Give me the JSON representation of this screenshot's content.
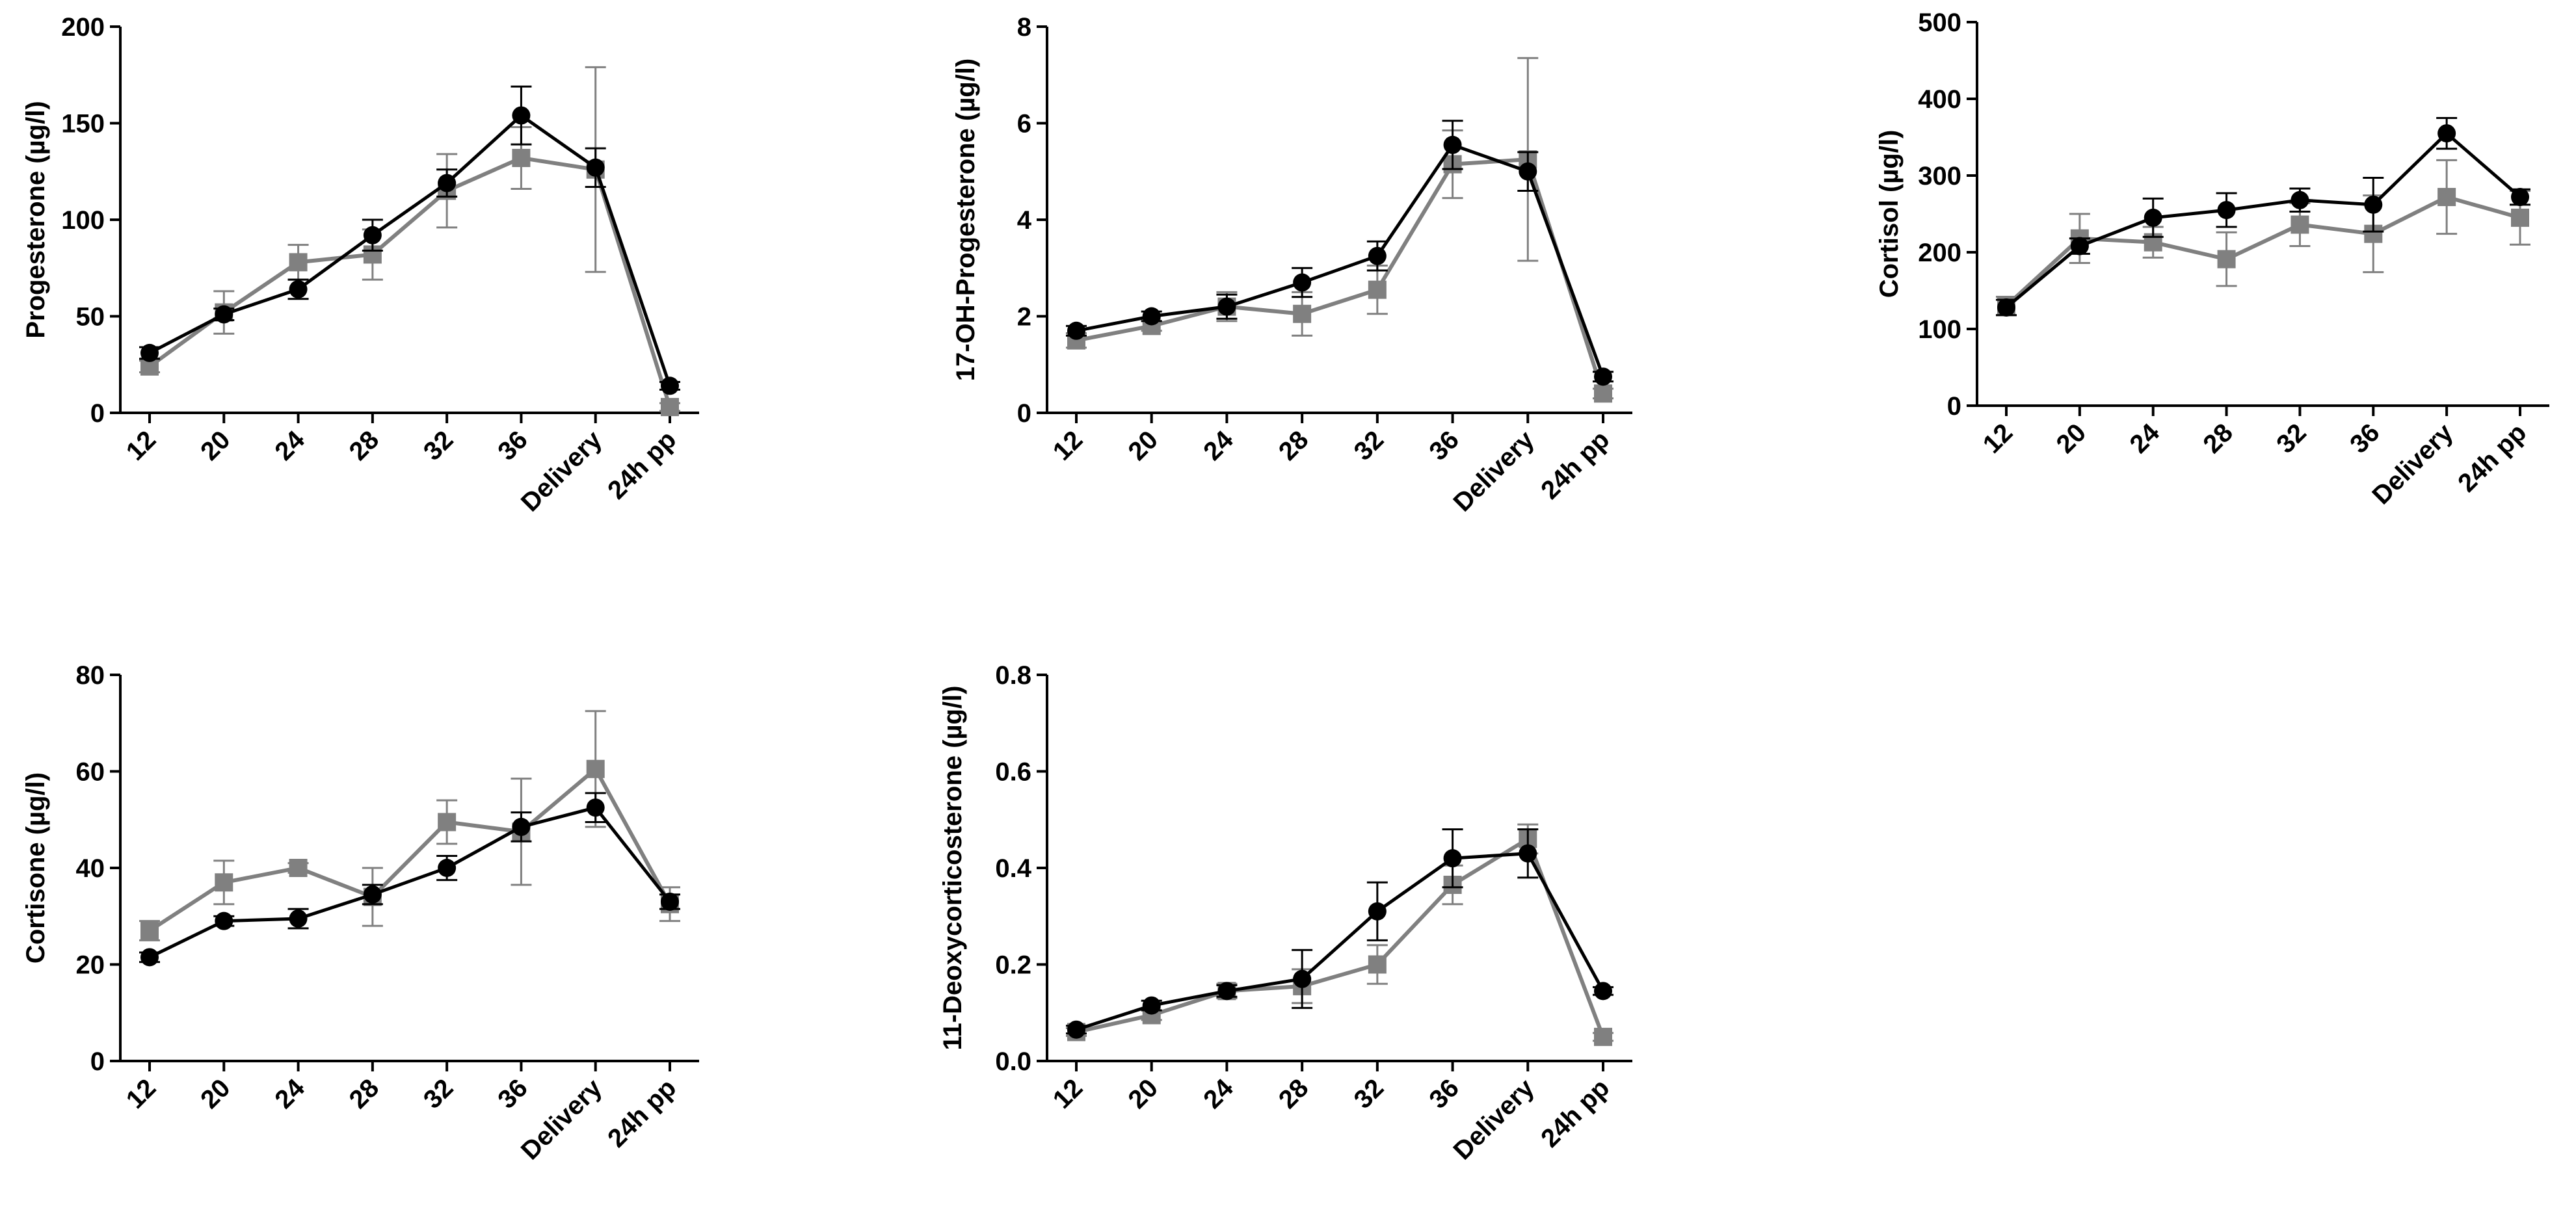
{
  "chart_data": [
    {
      "type": "line",
      "ylabel": "Progesterone (µg/l)",
      "ylim": [
        0,
        200
      ],
      "yticks": [
        0,
        50,
        100,
        150,
        200
      ],
      "categories": [
        "12",
        "20",
        "24",
        "28",
        "32",
        "36",
        "Delivery",
        "24h pp"
      ],
      "series": [
        {
          "name": "series-black",
          "color": "#000000",
          "marker": "circle",
          "values": [
            31,
            51,
            64,
            92,
            119,
            154,
            127,
            14
          ],
          "errors": [
            3,
            3,
            5,
            8,
            7,
            15,
            10,
            2
          ]
        },
        {
          "name": "series-gray",
          "color": "#808080",
          "marker": "square",
          "values": [
            24,
            52,
            78,
            82,
            115,
            132,
            126,
            3
          ],
          "errors": [
            3,
            11,
            9,
            13,
            19,
            16,
            53,
            2
          ]
        }
      ]
    },
    {
      "type": "line",
      "ylabel": "17-OH-Progesterone (µg/l)",
      "ylim": [
        0,
        8
      ],
      "yticks": [
        0,
        2,
        4,
        6,
        8
      ],
      "categories": [
        "12",
        "20",
        "24",
        "28",
        "32",
        "36",
        "Delivery",
        "24h pp"
      ],
      "series": [
        {
          "name": "series-black",
          "color": "#000000",
          "marker": "circle",
          "values": [
            1.7,
            2.0,
            2.2,
            2.7,
            3.25,
            5.55,
            5.0,
            0.75
          ],
          "errors": [
            0.1,
            0.1,
            0.25,
            0.3,
            0.3,
            0.5,
            0.4,
            0.1
          ]
        },
        {
          "name": "series-gray",
          "color": "#808080",
          "marker": "square",
          "values": [
            1.5,
            1.8,
            2.2,
            2.05,
            2.55,
            5.15,
            5.25,
            0.4
          ],
          "errors": [
            0.15,
            0.1,
            0.3,
            0.45,
            0.5,
            0.7,
            2.1,
            0.1
          ]
        }
      ]
    },
    {
      "type": "line",
      "ylabel": "Cortisol (µg/l)",
      "ylim": [
        0,
        500
      ],
      "yticks": [
        0,
        100,
        200,
        300,
        400,
        500
      ],
      "categories": [
        "12",
        "20",
        "24",
        "28",
        "32",
        "36",
        "Delivery",
        "24h pp"
      ],
      "series": [
        {
          "name": "series-black",
          "color": "#000000",
          "marker": "circle",
          "values": [
            128,
            208,
            245,
            255,
            268,
            262,
            355,
            272
          ],
          "errors": [
            10,
            10,
            25,
            22,
            15,
            35,
            20,
            10
          ]
        },
        {
          "name": "series-gray",
          "color": "#808080",
          "marker": "square",
          "values": [
            130,
            218,
            213,
            191,
            236,
            224,
            272,
            245
          ],
          "errors": [
            12,
            32,
            20,
            35,
            28,
            50,
            48,
            35
          ]
        }
      ]
    },
    {
      "type": "line",
      "ylabel": "Cortisone (µg/l)",
      "ylim": [
        0,
        80
      ],
      "yticks": [
        0,
        20,
        40,
        60,
        80
      ],
      "categories": [
        "12",
        "20",
        "24",
        "28",
        "32",
        "36",
        "Delivery",
        "24h pp"
      ],
      "series": [
        {
          "name": "series-black",
          "color": "#000000",
          "marker": "circle",
          "values": [
            21.5,
            29,
            29.5,
            34.5,
            40,
            48.5,
            52.5,
            33
          ],
          "errors": [
            1,
            1,
            2,
            2,
            2.5,
            3,
            3,
            1.5
          ]
        },
        {
          "name": "series-gray",
          "color": "#808080",
          "marker": "square",
          "values": [
            27,
            37,
            40,
            34,
            49.5,
            47.5,
            60.5,
            32.5
          ],
          "errors": [
            2,
            4.5,
            1,
            6,
            4.5,
            11,
            12,
            3.5
          ]
        }
      ]
    },
    {
      "type": "line",
      "ylabel": "11-Deoxycorticosterone (µg/l)",
      "ylim": [
        0,
        0.8
      ],
      "yticks": [
        0.0,
        0.2,
        0.4,
        0.6,
        0.8
      ],
      "yticklabels": [
        "0.0",
        "0.2",
        "0.4",
        "0.6",
        "0.8"
      ],
      "categories": [
        "12",
        "20",
        "24",
        "28",
        "32",
        "36",
        "Delivery",
        "24h pp"
      ],
      "series": [
        {
          "name": "series-black",
          "color": "#000000",
          "marker": "circle",
          "values": [
            0.065,
            0.115,
            0.145,
            0.17,
            0.31,
            0.42,
            0.43,
            0.145
          ],
          "errors": [
            0.008,
            0.01,
            0.012,
            0.06,
            0.06,
            0.06,
            0.05,
            0.008
          ]
        },
        {
          "name": "series-gray",
          "color": "#808080",
          "marker": "square",
          "values": [
            0.06,
            0.095,
            0.145,
            0.155,
            0.2,
            0.365,
            0.46,
            0.05
          ],
          "errors": [
            0.008,
            0.01,
            0.015,
            0.035,
            0.04,
            0.04,
            0.03,
            0.008
          ]
        }
      ]
    }
  ]
}
